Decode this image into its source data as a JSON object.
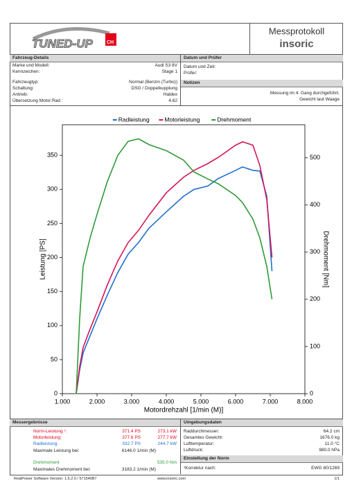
{
  "header": {
    "logo": "TUNED-UP",
    "logo_suffix": "CH",
    "title": "Messprotokoll",
    "brand": "insoric"
  },
  "vehicle": {
    "title": "Fahrzeug-Details",
    "rows": [
      [
        "Marke und Modell:",
        "Audi S3 8V"
      ],
      [
        "Kennzeichen:",
        "Stage 1"
      ],
      [
        "Fahrzeugtyp:",
        "Normal (Benzin (Turbo))"
      ],
      [
        "Schaltung:",
        "DSG / Doppelkupplung"
      ],
      [
        "Antrieb:",
        "Haldex"
      ],
      [
        "Übersetzung Motor:Rad :",
        "4.62"
      ]
    ]
  },
  "inspection": {
    "title": "Datum und Prüfer",
    "rows": [
      "Datum und Zeit:",
      "Prüfer:"
    ]
  },
  "notes": {
    "title": "Notizen",
    "lines": [
      "Messung im 4. Gang durchgeführt.",
      "Gewicht laut Waage"
    ]
  },
  "chart_data": {
    "type": "line",
    "x": [
      1400,
      1500,
      1600,
      1800,
      2000,
      2300,
      2600,
      2900,
      3200,
      3500,
      4000,
      4500,
      4800,
      5200,
      5500,
      6000,
      6200,
      6500,
      6700,
      6900,
      7050
    ],
    "series": [
      {
        "name": "Radleistung",
        "color": "#1f6fd0",
        "values": [
          0,
          35,
          60,
          85,
          110,
          145,
          178,
          205,
          222,
          243,
          267,
          290,
          300,
          305,
          316,
          328,
          333,
          328,
          327,
          290,
          180
        ]
      },
      {
        "name": "Motorleistung",
        "color": "#d4145a",
        "values": [
          0,
          40,
          68,
          95,
          120,
          160,
          195,
          222,
          240,
          262,
          295,
          318,
          328,
          338,
          347,
          365,
          370,
          365,
          335,
          285,
          200
        ]
      },
      {
        "name": "Drehmoment",
        "color": "#2e9a38",
        "axis": "y2",
        "values": [
          0,
          160,
          270,
          330,
          380,
          450,
          505,
          535,
          540,
          528,
          515,
          495,
          470,
          455,
          445,
          420,
          405,
          370,
          330,
          270,
          200
        ]
      }
    ],
    "xlabel": "Motordrehzahl [1/min (M)]",
    "ylabel": "Leistung [PS]",
    "y2label": "Drehmoment [Nm]",
    "xlim": [
      1000,
      8000
    ],
    "xticks": [
      {
        "value": 1000,
        "label": "1.000"
      },
      {
        "value": 2000,
        "label": "2.000"
      },
      {
        "value": 3000,
        "label": "3.000"
      },
      {
        "value": 4000,
        "label": "4.000"
      },
      {
        "value": 5000,
        "label": "5.000"
      },
      {
        "value": 6000,
        "label": "6.000"
      },
      {
        "value": 7000,
        "label": "7.000"
      },
      {
        "value": 8000,
        "label": "8.000"
      }
    ],
    "ylim": [
      0,
      395
    ],
    "yticks": [
      0,
      50,
      100,
      150,
      200,
      250,
      300,
      350
    ],
    "y2lim": [
      0,
      570
    ],
    "y2ticks": [
      0,
      100,
      200,
      300,
      400,
      500
    ],
    "legend": "top",
    "grid": false
  },
  "results": {
    "title": "Messergebnisse",
    "rows": [
      {
        "label": "Norm-Leistung ¹:",
        "values": [
          "371.4 PS",
          "273.1 kW"
        ],
        "color": "#e3001b"
      },
      {
        "label": "Motorleistung:",
        "values": [
          "377.6 PS",
          "277.7 kW"
        ],
        "color": "#e3001b"
      },
      {
        "label": "Radleistung:",
        "values": [
          "332.7 PS",
          "244.7 kW"
        ],
        "color": "#1f6fd0"
      },
      {
        "label": "Maximale Leistung bei:",
        "values": [
          "6146.0 1/min (M)"
        ]
      },
      {
        "label": "Drehmoment",
        "values": [
          "535.0 Nm"
        ],
        "color": "#2e9a38"
      },
      {
        "label": "Maximales Drehmoment bei:",
        "values": [
          "3183.2 1/min (M)"
        ]
      }
    ]
  },
  "environment": {
    "title": "Umgebungsdaten",
    "rows": [
      [
        "Raddurchmesser:",
        "64.2 cm"
      ],
      [
        "Gesamtes Gewicht:",
        "1676.0 kg"
      ],
      [
        "Lufttemperatur:",
        "11.0 °C"
      ],
      [
        "Luftdruck:",
        "980.0 hPa"
      ]
    ]
  },
  "norm": {
    "title": "Einstellung der Norm",
    "rows": [
      [
        "¹Korrektur nach:",
        "EWG 80/1269"
      ]
    ]
  },
  "footer": {
    "software": "RealPower Software Version: 1.5.2.0 / 571540B7",
    "website": "www.insoric.com",
    "page": "1/1"
  }
}
